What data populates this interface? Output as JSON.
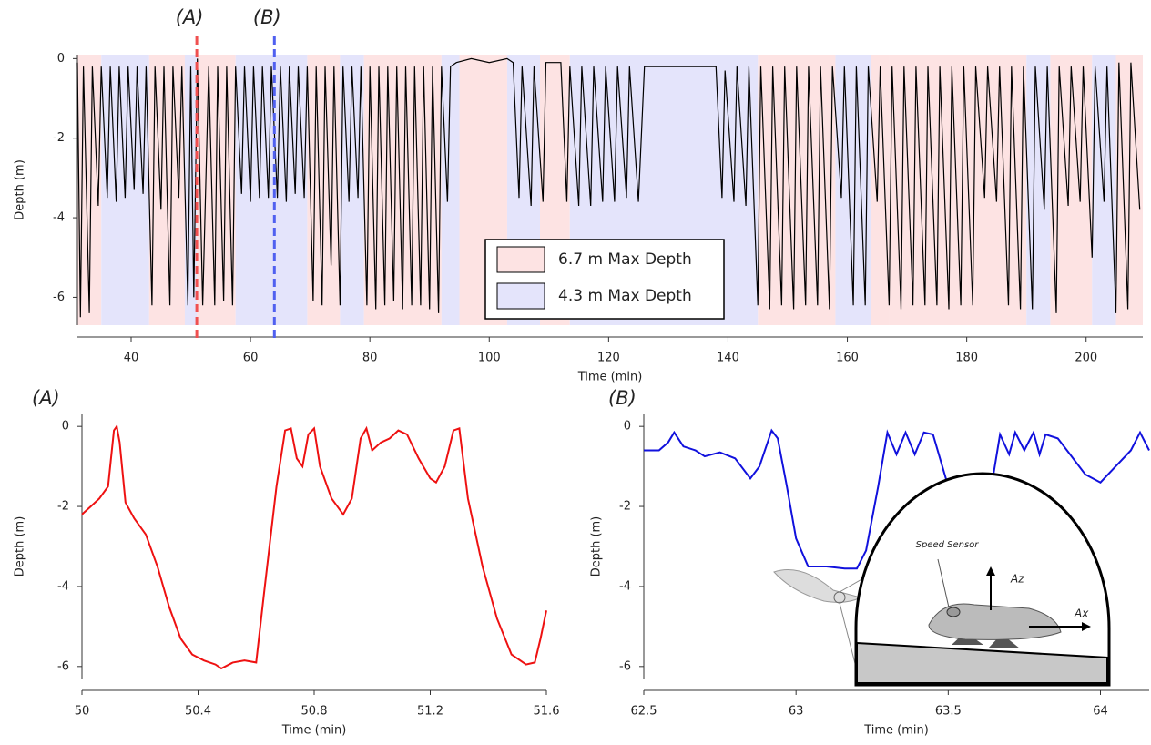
{
  "chart_data": [
    {
      "type": "line",
      "ylabel": "Depth (m)",
      "xlabel": "Time (min)",
      "xlim": [
        31,
        209.5
      ],
      "ylim": [
        -6.7,
        0.1
      ],
      "xticks": [
        40,
        60,
        80,
        100,
        120,
        140,
        160,
        180,
        200
      ],
      "yticks": [
        0,
        -2,
        -4,
        -6
      ],
      "legend": "lower center",
      "shading": [
        {
          "name": "6.7 m Max Depth",
          "color": "#fde3e3",
          "spans": [
            [
              31,
              35
            ],
            [
              43,
              49
            ],
            [
              51,
              57.5
            ],
            [
              69.5,
              75
            ],
            [
              79,
              92
            ],
            [
              95,
              103
            ],
            [
              108.5,
              113.5
            ],
            [
              145,
              158
            ],
            [
              164,
              167
            ],
            [
              167,
              190
            ],
            [
              194,
              201
            ],
            [
              205,
              209.5
            ]
          ]
        },
        {
          "name": "4.3 m Max Depth",
          "color": "#e4e4fb",
          "spans": [
            [
              35,
              43
            ],
            [
              49,
              51
            ],
            [
              57.5,
              69.5
            ],
            [
              75,
              79
            ],
            [
              92,
              95
            ],
            [
              103,
              108.5
            ],
            [
              113.5,
              145
            ],
            [
              158,
              164
            ],
            [
              190,
              194
            ],
            [
              201,
              205
            ]
          ]
        }
      ],
      "markers": [
        {
          "label": "(A)",
          "x": 51,
          "color": "#f05050"
        },
        {
          "label": "(B)",
          "x": 64,
          "color": "#5060f0"
        }
      ],
      "series": [
        {
          "color": "#000000",
          "x": [
            31,
            31.5,
            32,
            33,
            33.5,
            34.5,
            35,
            36,
            36.5,
            37.5,
            38,
            39,
            39.5,
            40.5,
            41,
            42,
            42.5,
            43.5,
            44,
            45,
            45.5,
            46.5,
            47,
            48,
            48.5,
            49.5,
            50,
            50.5,
            51.1,
            52,
            53,
            54,
            54.5,
            55.5,
            56,
            57,
            57.5,
            58.5,
            59,
            60,
            60.5,
            61.5,
            62,
            63,
            63.5,
            64.5,
            65,
            66,
            66.5,
            67.5,
            68,
            69,
            69.5,
            70.5,
            71,
            72,
            72.5,
            73.5,
            74,
            75,
            75.5,
            76.5,
            77,
            78,
            78.5,
            79.5,
            80,
            81,
            81.5,
            82.5,
            83,
            84,
            84.5,
            85.5,
            86,
            87,
            87.5,
            88.5,
            89,
            90,
            90.5,
            91.5,
            92,
            93,
            93.5,
            94.5,
            97,
            100,
            103,
            104,
            105,
            105.5,
            107,
            107.5,
            109,
            109.5,
            112,
            113,
            113.5,
            115,
            115.5,
            117,
            117.5,
            119,
            119.5,
            121,
            121.5,
            123,
            123.5,
            125,
            126,
            130,
            135,
            138,
            139,
            139.5,
            141,
            141.5,
            143,
            143.5,
            145,
            145.5,
            147,
            147.5,
            149,
            149.5,
            151,
            151.5,
            153,
            153.5,
            155,
            155.5,
            157,
            157.5,
            159,
            159.5,
            161,
            161.5,
            163,
            163.5,
            165,
            165.5,
            167,
            167.5,
            169,
            169.5,
            171,
            171.5,
            173,
            173.5,
            175,
            175.5,
            177,
            177.5,
            179,
            179.5,
            181,
            181.5,
            183,
            183.5,
            185,
            185.5,
            187,
            187.5,
            189,
            189.5,
            191,
            191.5,
            193,
            193.5,
            195,
            195.5,
            197,
            197.5,
            199,
            199.5,
            201,
            201.5,
            203,
            203.5,
            205,
            205.5,
            207,
            207.5,
            209
          ],
          "values": [
            -0.1,
            -6.5,
            -0.2,
            -6.4,
            -0.2,
            -3.7,
            -0.2,
            -3.5,
            -0.2,
            -3.6,
            -0.2,
            -3.5,
            -0.2,
            -3.3,
            -0.2,
            -3.4,
            -0.2,
            -6.2,
            -0.2,
            -3.8,
            -0.2,
            -6.2,
            -0.2,
            -3.5,
            -0.2,
            -6.2,
            -0.2,
            -6.0,
            0,
            -6.2,
            -0.2,
            -6.2,
            -0.2,
            -6.1,
            -0.2,
            -6.2,
            -0.2,
            -3.4,
            -0.2,
            -3.6,
            -0.2,
            -3.5,
            -0.2,
            -3.5,
            -0.2,
            -3.5,
            -0.2,
            -3.6,
            -0.2,
            -3.4,
            -0.2,
            -3.5,
            -0.2,
            -6.1,
            -0.2,
            -6.2,
            -0.2,
            -5.2,
            -0.2,
            -6.2,
            -0.2,
            -3.6,
            -0.2,
            -3.5,
            -0.2,
            -6.2,
            -0.2,
            -6.3,
            -0.2,
            -6.2,
            -0.2,
            -6.1,
            -0.2,
            -6.3,
            -0.2,
            -6.2,
            -0.2,
            -6.2,
            -0.2,
            -6.3,
            -0.2,
            -6.4,
            -0.2,
            -3.6,
            -0.2,
            -0.1,
            0,
            -0.1,
            0,
            -0.1,
            -3.5,
            -0.2,
            -3.7,
            -0.2,
            -3.6,
            -0.1,
            -0.1,
            -3.6,
            -0.2,
            -3.7,
            -0.2,
            -3.7,
            -0.2,
            -3.6,
            -0.2,
            -3.6,
            -0.2,
            -3.5,
            -0.2,
            -3.6,
            -0.2,
            -0.2,
            -0.2,
            -0.2,
            -3.5,
            -0.3,
            -3.6,
            -0.2,
            -3.7,
            -0.2,
            -6.2,
            -0.2,
            -6.3,
            -0.2,
            -6.2,
            -0.2,
            -6.3,
            -0.2,
            -6.2,
            -0.2,
            -6.2,
            -0.2,
            -6.3,
            -0.2,
            -3.5,
            -0.2,
            -6.2,
            -0.2,
            -6.2,
            -0.2,
            -3.6,
            -0.2,
            -6.2,
            -0.2,
            -6.3,
            -0.2,
            -6.2,
            -0.2,
            -6.2,
            -0.2,
            -6.2,
            -0.2,
            -6.3,
            -0.2,
            -6.2,
            -0.2,
            -6.2,
            -0.2,
            -3.5,
            -0.2,
            -3.6,
            -0.2,
            -6.2,
            -0.2,
            -6.3,
            -0.2,
            -6.3,
            -0.2,
            -3.8,
            -0.2,
            -6.4,
            -0.2,
            -3.7,
            -0.2,
            -3.6,
            -0.2,
            -5.0,
            -0.2,
            -3.6,
            -0.2,
            -6.4,
            -0.1,
            -6.3,
            -0.1,
            -3.8
          ]
        }
      ]
    },
    {
      "type": "line",
      "title": "(A)",
      "ylabel": "Depth (m)",
      "xlabel": "Time (min)",
      "xlim": [
        50,
        51.6
      ],
      "ylim": [
        -6.3,
        0.3
      ],
      "xticks": [
        50,
        50.4,
        50.8,
        51.2,
        51.6
      ],
      "yticks": [
        0,
        -2,
        -4,
        -6
      ],
      "series": [
        {
          "color": "#ee1111",
          "x": [
            50,
            50.03,
            50.06,
            50.09,
            50.11,
            50.12,
            50.13,
            50.15,
            50.18,
            50.22,
            50.26,
            50.3,
            50.34,
            50.38,
            50.42,
            50.46,
            50.48,
            50.52,
            50.56,
            50.6,
            50.63,
            50.67,
            50.7,
            50.72,
            50.74,
            50.76,
            50.78,
            50.8,
            50.82,
            50.86,
            50.9,
            50.93,
            50.96,
            50.98,
            51.0,
            51.03,
            51.06,
            51.09,
            51.12,
            51.16,
            51.2,
            51.22,
            51.25,
            51.28,
            51.3,
            51.33,
            51.38,
            51.43,
            51.48,
            51.53,
            51.56,
            51.58,
            51.6
          ],
          "values": [
            -2.2,
            -2.0,
            -1.8,
            -1.5,
            -0.1,
            0,
            -0.4,
            -1.9,
            -2.3,
            -2.7,
            -3.5,
            -4.5,
            -5.3,
            -5.7,
            -5.85,
            -5.95,
            -6.05,
            -5.9,
            -5.85,
            -5.9,
            -4.0,
            -1.5,
            -0.1,
            -0.05,
            -0.8,
            -1.0,
            -0.2,
            -0.05,
            -1.0,
            -1.8,
            -2.2,
            -1.8,
            -0.3,
            -0.05,
            -0.6,
            -0.4,
            -0.3,
            -0.1,
            -0.2,
            -0.8,
            -1.3,
            -1.4,
            -1.0,
            -0.1,
            -0.05,
            -1.8,
            -3.5,
            -4.8,
            -5.7,
            -5.95,
            -5.9,
            -5.3,
            -4.6
          ]
        }
      ]
    },
    {
      "type": "line",
      "title": "(B)",
      "ylabel": "Depth (m)",
      "xlabel": "Time (min)",
      "xlim": [
        62.5,
        64.16
      ],
      "ylim": [
        -6.3,
        0.3
      ],
      "xticks": [
        62.5,
        63,
        63.5,
        64
      ],
      "yticks": [
        0,
        -2,
        -4,
        -6
      ],
      "annotations": [
        "Speed Sensor",
        "Az",
        "Ax"
      ],
      "series": [
        {
          "color": "#1111dd",
          "x": [
            62.5,
            62.55,
            62.58,
            62.6,
            62.63,
            62.67,
            62.7,
            62.75,
            62.8,
            62.85,
            62.88,
            62.92,
            62.94,
            62.97,
            63.0,
            63.04,
            63.1,
            63.16,
            63.2,
            63.23,
            63.27,
            63.3,
            63.33,
            63.36,
            63.39,
            63.42,
            63.45,
            63.5,
            63.55,
            63.58,
            63.61,
            63.64,
            63.67,
            63.7,
            63.72,
            63.75,
            63.78,
            63.8,
            63.82,
            63.86,
            63.9,
            63.95,
            64.0,
            64.05,
            64.1,
            64.13,
            64.16
          ],
          "values": [
            -0.6,
            -0.6,
            -0.4,
            -0.15,
            -0.5,
            -0.6,
            -0.75,
            -0.65,
            -0.8,
            -1.3,
            -1.0,
            -0.1,
            -0.3,
            -1.5,
            -2.8,
            -3.5,
            -3.5,
            -3.55,
            -3.55,
            -3.1,
            -1.5,
            -0.15,
            -0.7,
            -0.15,
            -0.7,
            -0.15,
            -0.2,
            -1.5,
            -3.0,
            -3.5,
            -3.2,
            -1.6,
            -0.2,
            -0.7,
            -0.15,
            -0.6,
            -0.15,
            -0.7,
            -0.2,
            -0.3,
            -0.7,
            -1.2,
            -1.4,
            -1.0,
            -0.6,
            -0.15,
            -0.6
          ]
        }
      ]
    }
  ]
}
